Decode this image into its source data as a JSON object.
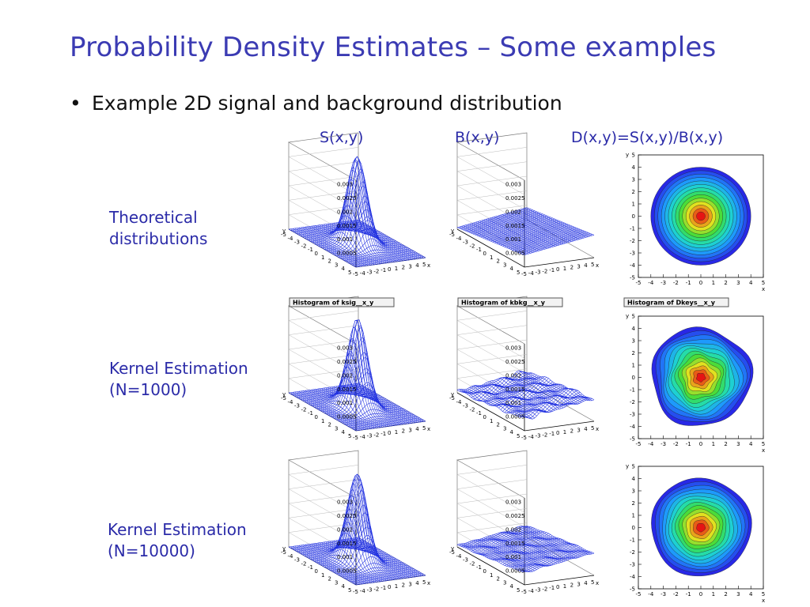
{
  "slide": {
    "title": "Probability Density Estimates – Some examples",
    "bullet": "Example 2D signal and background distribution"
  },
  "columns": [
    "S(x,y)",
    "B(x,y)",
    "D(x,y)=S(x,y)/B(x,y)"
  ],
  "rows": [
    {
      "label_line1": "Theoretical",
      "label_line2": "distributions"
    },
    {
      "label_line1": "Kernel Estimation",
      "label_line2": "(N=1000)"
    },
    {
      "label_line1": "Kernel Estimation",
      "label_line2": "(N=10000)"
    }
  ],
  "histogram_titles": [
    "Histogram of ksig__x_y",
    "Histogram of kbkg__x_y",
    "Histogram of Dkeys__x_y"
  ],
  "surface_z_ticks": [
    "0.003",
    "0.0025",
    "0.002",
    "0.0015",
    "0.001",
    "0.0005"
  ],
  "surface_ticks": [
    "-5",
    "-4",
    "-3",
    "-2",
    "-1",
    "0",
    "1",
    "2",
    "3",
    "4",
    "5"
  ],
  "contour_y_ticks": [
    "5",
    "4",
    "3",
    "2",
    "1",
    "0",
    "-1",
    "-2",
    "-3",
    "-4",
    "-5"
  ],
  "contour_x_ticks": [
    "-5",
    "-4",
    "-3",
    "-2",
    "-1",
    "0",
    "1",
    "2",
    "3",
    "4",
    "5"
  ],
  "axis_letters": {
    "x": "x",
    "y": "y"
  },
  "colors": {
    "title": "#3b3bb3",
    "label": "#2b2ba8",
    "mesh": "#2030e0"
  }
}
